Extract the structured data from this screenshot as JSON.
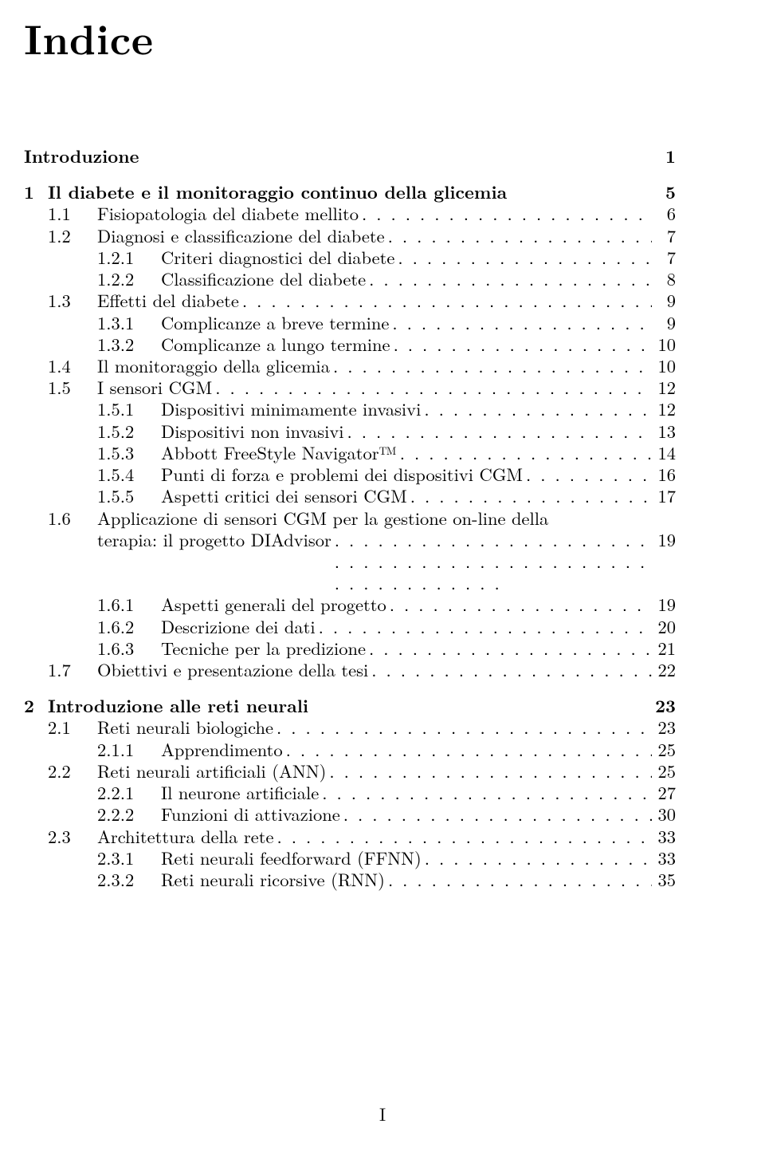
{
  "title": "Indice",
  "footer": "I",
  "colors": {
    "text": "#000000",
    "background": "#ffffff"
  },
  "typography": {
    "title_fontsize_pt": 39,
    "body_fontsize_pt": 17,
    "font_family": "Computer Modern / Latin Modern Roman (LaTeX default serif)"
  },
  "entries": [
    {
      "level": 0,
      "type": "nochap",
      "bold": true,
      "number": "",
      "label": "Introduzione",
      "page": "1",
      "dots": false
    },
    {
      "level": 0,
      "type": "chap",
      "bold": true,
      "number": "1",
      "label": "Il diabete e il monitoraggio continuo della glicemia",
      "page": "5",
      "dots": false
    },
    {
      "level": 1,
      "number": "1.1",
      "label": "Fisiopatologia del diabete mellito",
      "page": "6",
      "dots": true
    },
    {
      "level": 1,
      "number": "1.2",
      "label": "Diagnosi e classificazione del diabete",
      "page": "7",
      "dots": true
    },
    {
      "level": 2,
      "number": "1.2.1",
      "label": "Criteri diagnostici del diabete",
      "page": "7",
      "dots": true
    },
    {
      "level": 2,
      "number": "1.2.2",
      "label": "Classificazione del diabete",
      "page": "8",
      "dots": true
    },
    {
      "level": 1,
      "number": "1.3",
      "label": "Effetti del diabete",
      "page": "9",
      "dots": true
    },
    {
      "level": 2,
      "number": "1.3.1",
      "label": "Complicanze a breve termine",
      "page": "9",
      "dots": true
    },
    {
      "level": 2,
      "number": "1.3.2",
      "label": "Complicanze a lungo termine",
      "page": "10",
      "dots": true
    },
    {
      "level": 1,
      "number": "1.4",
      "label": "Il monitoraggio della glicemia",
      "page": "10",
      "dots": true
    },
    {
      "level": 1,
      "number": "1.5",
      "label": "I sensori CGM",
      "page": "12",
      "dots": true
    },
    {
      "level": 2,
      "number": "1.5.1",
      "label": "Dispositivi minimamente invasivi",
      "page": "12",
      "dots": true
    },
    {
      "level": 2,
      "number": "1.5.2",
      "label": "Dispositivi non invasivi",
      "page": "13",
      "dots": true
    },
    {
      "level": 2,
      "number": "1.5.3",
      "label": "Abbott FreeStyle Navigator™",
      "page": "14",
      "dots": true
    },
    {
      "level": 2,
      "number": "1.5.4",
      "label": "Punti di forza e problemi dei dispositivi CGM",
      "page": "16",
      "dots": true
    },
    {
      "level": 2,
      "number": "1.5.5",
      "label": "Aspetti critici dei sensori CGM",
      "page": "17",
      "dots": true
    },
    {
      "level": 1,
      "number": "1.6",
      "label": "Applicazione di sensori CGM per la gestione on-line della",
      "page": "",
      "dots": false,
      "wrap": true
    },
    {
      "level": 1,
      "type": "cont",
      "label": "terapia: il progetto DIAdvisor",
      "page": "19",
      "dots": true
    },
    {
      "level": 2,
      "number": "1.6.1",
      "label": "Aspetti generali del progetto",
      "page": "19",
      "dots": true
    },
    {
      "level": 2,
      "number": "1.6.2",
      "label": "Descrizione dei dati",
      "page": "20",
      "dots": true
    },
    {
      "level": 2,
      "number": "1.6.3",
      "label": "Tecniche per la predizione",
      "page": "21",
      "dots": true
    },
    {
      "level": 1,
      "number": "1.7",
      "label": "Obiettivi e presentazione della tesi",
      "page": "22",
      "dots": true
    },
    {
      "level": 0,
      "type": "chap",
      "bold": true,
      "number": "2",
      "label": "Introduzione alle reti neurali",
      "page": "23",
      "dots": false
    },
    {
      "level": 1,
      "number": "2.1",
      "label": "Reti neurali biologiche",
      "page": "23",
      "dots": true
    },
    {
      "level": 2,
      "number": "2.1.1",
      "label": "Apprendimento",
      "page": "25",
      "dots": true
    },
    {
      "level": 1,
      "number": "2.2",
      "label": "Reti neurali artificiali (ANN)",
      "page": "25",
      "dots": true
    },
    {
      "level": 2,
      "number": "2.2.1",
      "label": "Il neurone artificiale",
      "page": "27",
      "dots": true
    },
    {
      "level": 2,
      "number": "2.2.2",
      "label": "Funzioni di attivazione",
      "page": "30",
      "dots": true
    },
    {
      "level": 1,
      "number": "2.3",
      "label": "Architettura della rete",
      "page": "33",
      "dots": true
    },
    {
      "level": 2,
      "number": "2.3.1",
      "label": "Reti neurali feedforward (FFNN)",
      "page": "33",
      "dots": true
    },
    {
      "level": 2,
      "number": "2.3.2",
      "label": "Reti neurali ricorsive (RNN)",
      "page": "35",
      "dots": true
    }
  ]
}
